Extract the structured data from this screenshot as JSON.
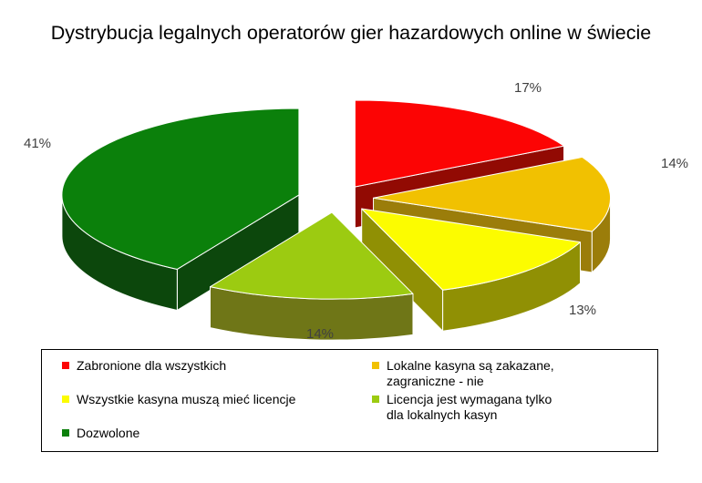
{
  "chart_data": {
    "type": "pie",
    "style": "3d-exploded-pie",
    "title": "Dystrybucja legalnych operatorów gier hazardowych online w świecie",
    "unit": "%",
    "legend_position": "bottom",
    "start_angle_deg": 0,
    "direction": "clockwise",
    "series": [
      {
        "name": "Zabronione dla wszystkich",
        "value": 17,
        "label": "17%",
        "color": "#FC0404",
        "side_color": "#920A03"
      },
      {
        "name": "Lokalne kasyna są zakazane, zagraniczne - nie",
        "value": 14,
        "label": "14%",
        "color": "#F1C101",
        "side_color": "#9B7D0A"
      },
      {
        "name": "Wszystkie kasyna muszą mieć licencje",
        "value": 13,
        "label": "13%",
        "color": "#FCFC00",
        "side_color": "#909004"
      },
      {
        "name": "Licencja jest wymagana tylko dla lokalnych kasyn",
        "value": 14,
        "label": "14%",
        "color": "#9CCB11",
        "side_color": "#6F7617"
      },
      {
        "name": "Dozwolone",
        "value": 41,
        "label": "41%",
        "color": "#0B800B",
        "side_color": "#0C470C"
      }
    ]
  }
}
